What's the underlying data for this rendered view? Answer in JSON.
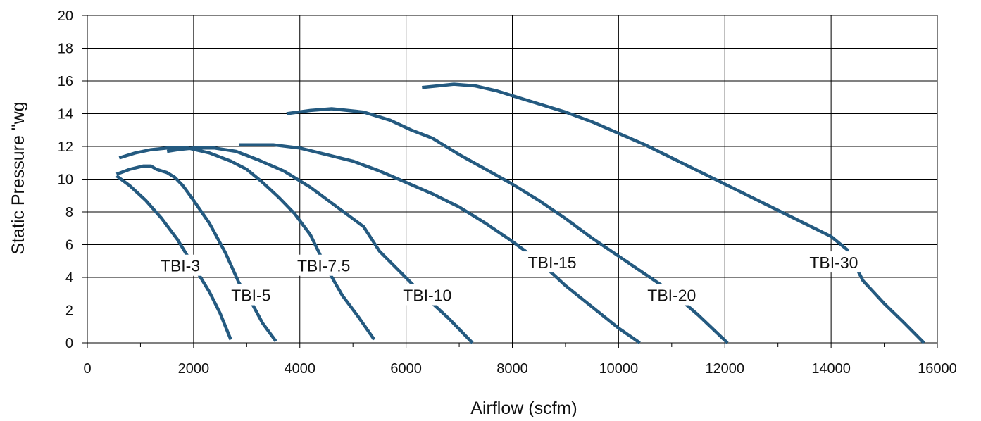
{
  "chart_data": {
    "type": "line",
    "title": "",
    "xlabel": "Airflow (scfm)",
    "ylabel": "Static Pressure \"wg",
    "xlim": [
      0,
      16000
    ],
    "ylim": [
      0,
      20
    ],
    "x_ticks": [
      "0",
      "2000",
      "4000",
      "6000",
      "8000",
      "10000",
      "12000",
      "14000",
      "16000"
    ],
    "y_ticks": [
      "0",
      "2",
      "4",
      "6",
      "8",
      "10",
      "12",
      "14",
      "16",
      "18",
      "20"
    ],
    "grid": true,
    "legend": "none",
    "line_color": "#245a80",
    "series": [
      {
        "name": "TBI-3",
        "label_at": [
          1750,
          4.7
        ],
        "points": [
          [
            550,
            10.2
          ],
          [
            800,
            9.6
          ],
          [
            1100,
            8.7
          ],
          [
            1400,
            7.6
          ],
          [
            1700,
            6.3
          ],
          [
            2000,
            4.7
          ],
          [
            2300,
            3.1
          ],
          [
            2500,
            1.8
          ],
          [
            2700,
            0.2
          ]
        ]
      },
      {
        "name": "TBI-5",
        "label_at": [
          3080,
          2.9
        ],
        "points": [
          [
            550,
            10.3
          ],
          [
            800,
            10.6
          ],
          [
            1050,
            10.8
          ],
          [
            1200,
            10.8
          ],
          [
            1300,
            10.6
          ],
          [
            1500,
            10.4
          ],
          [
            1650,
            10.1
          ],
          [
            1800,
            9.6
          ],
          [
            2000,
            8.7
          ],
          [
            2300,
            7.3
          ],
          [
            2600,
            5.5
          ],
          [
            2850,
            3.7
          ],
          [
            3100,
            2.4
          ],
          [
            3300,
            1.2
          ],
          [
            3550,
            0.1
          ]
        ]
      },
      {
        "name": "TBI-7.5",
        "label_at": [
          4450,
          4.7
        ],
        "points": [
          [
            600,
            11.3
          ],
          [
            900,
            11.6
          ],
          [
            1200,
            11.8
          ],
          [
            1500,
            11.9
          ],
          [
            1900,
            11.9
          ],
          [
            2300,
            11.6
          ],
          [
            2700,
            11.1
          ],
          [
            3000,
            10.6
          ],
          [
            3300,
            9.8
          ],
          [
            3600,
            8.9
          ],
          [
            3900,
            7.9
          ],
          [
            4200,
            6.6
          ],
          [
            4500,
            4.6
          ],
          [
            4800,
            2.9
          ],
          [
            5100,
            1.6
          ],
          [
            5400,
            0.2
          ]
        ]
      },
      {
        "name": "TBI-10",
        "label_at": [
          6400,
          2.9
        ],
        "points": [
          [
            1500,
            11.7
          ],
          [
            1700,
            11.8
          ],
          [
            2000,
            11.9
          ],
          [
            2400,
            11.9
          ],
          [
            2800,
            11.7
          ],
          [
            3200,
            11.2
          ],
          [
            3700,
            10.5
          ],
          [
            4200,
            9.5
          ],
          [
            4700,
            8.3
          ],
          [
            5200,
            7.1
          ],
          [
            5500,
            5.6
          ],
          [
            5900,
            4.3
          ],
          [
            6300,
            3.0
          ],
          [
            6800,
            1.5
          ],
          [
            7250,
            0.0
          ]
        ]
      },
      {
        "name": "TBI-15",
        "label_at": [
          8750,
          4.9
        ],
        "points": [
          [
            2850,
            12.1
          ],
          [
            3250,
            12.1
          ],
          [
            3500,
            12.1
          ],
          [
            4000,
            11.9
          ],
          [
            4500,
            11.5
          ],
          [
            5000,
            11.1
          ],
          [
            5500,
            10.5
          ],
          [
            6000,
            9.8
          ],
          [
            6500,
            9.1
          ],
          [
            7000,
            8.3
          ],
          [
            7500,
            7.3
          ],
          [
            8000,
            6.2
          ],
          [
            8500,
            5.0
          ],
          [
            9000,
            3.5
          ],
          [
            9500,
            2.2
          ],
          [
            10000,
            0.9
          ],
          [
            10400,
            0.0
          ]
        ]
      },
      {
        "name": "TBI-20",
        "label_at": [
          11000,
          2.9
        ],
        "points": [
          [
            3750,
            14.0
          ],
          [
            4200,
            14.2
          ],
          [
            4600,
            14.3
          ],
          [
            5200,
            14.1
          ],
          [
            5700,
            13.6
          ],
          [
            6100,
            13.0
          ],
          [
            6500,
            12.5
          ],
          [
            7000,
            11.5
          ],
          [
            7500,
            10.6
          ],
          [
            8000,
            9.7
          ],
          [
            8500,
            8.7
          ],
          [
            9000,
            7.6
          ],
          [
            9500,
            6.4
          ],
          [
            10000,
            5.3
          ],
          [
            10500,
            4.2
          ],
          [
            11000,
            3.1
          ],
          [
            11500,
            1.7
          ],
          [
            12050,
            0.0
          ]
        ]
      },
      {
        "name": "TBI-30",
        "label_at": [
          14050,
          4.9
        ],
        "points": [
          [
            6300,
            15.6
          ],
          [
            6600,
            15.7
          ],
          [
            6900,
            15.8
          ],
          [
            7300,
            15.7
          ],
          [
            7700,
            15.4
          ],
          [
            8100,
            15.0
          ],
          [
            8500,
            14.6
          ],
          [
            9000,
            14.1
          ],
          [
            9500,
            13.5
          ],
          [
            10000,
            12.8
          ],
          [
            10500,
            12.1
          ],
          [
            11000,
            11.3
          ],
          [
            11500,
            10.5
          ],
          [
            12000,
            9.7
          ],
          [
            12500,
            8.9
          ],
          [
            13000,
            8.1
          ],
          [
            13500,
            7.3
          ],
          [
            14000,
            6.5
          ],
          [
            14300,
            5.7
          ],
          [
            14600,
            3.8
          ],
          [
            15000,
            2.4
          ],
          [
            15350,
            1.3
          ],
          [
            15750,
            0.0
          ]
        ]
      }
    ]
  }
}
